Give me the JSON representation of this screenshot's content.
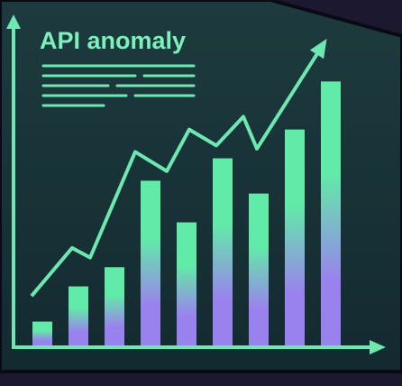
{
  "chart_data": [
    {
      "type": "bar",
      "title": "API anomaly",
      "categories": [
        null,
        null,
        null,
        null,
        null,
        null,
        null,
        null,
        null
      ],
      "values": [
        8,
        19,
        25,
        52,
        39,
        59,
        48,
        68,
        83
      ],
      "ylim": [
        0,
        100
      ],
      "gradient": [
        "#62eaa8",
        "#9a82ee"
      ]
    },
    {
      "type": "line",
      "x": [
        5,
        16.25,
        21.25,
        33.75,
        42.5,
        48.75,
        56.25,
        63.75,
        67.5,
        85
      ],
      "values": [
        16,
        31,
        28,
        61,
        55,
        68,
        63,
        72,
        62,
        93
      ],
      "xlim": [
        0,
        100
      ],
      "ylim": [
        0,
        100
      ],
      "color": "#6ee8b0"
    }
  ]
}
